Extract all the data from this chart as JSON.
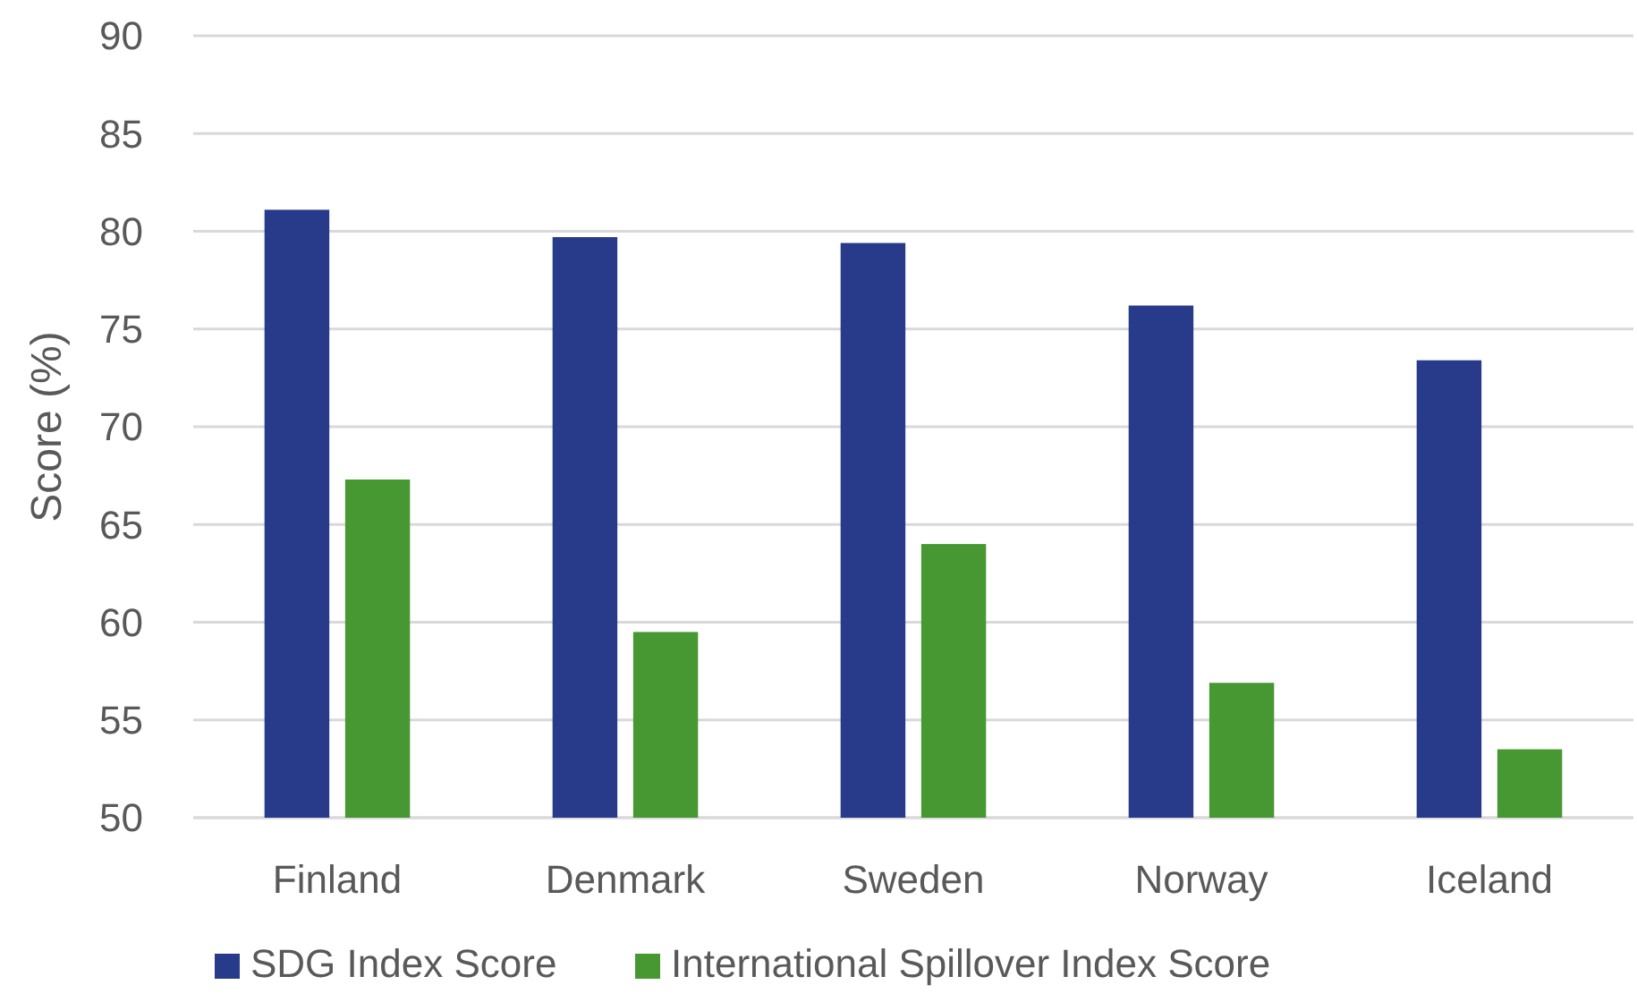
{
  "chart_data": {
    "type": "bar",
    "ylabel": "Score (%)",
    "categories": [
      "Finland",
      "Denmark",
      "Sweden",
      "Norway",
      "Iceland"
    ],
    "series": [
      {
        "name": "SDG Index Score",
        "color": "#283a8a",
        "values": [
          81.1,
          79.7,
          79.4,
          76.2,
          73.4
        ]
      },
      {
        "name": "International Spillover Index Score",
        "color": "#479833",
        "values": [
          67.3,
          59.5,
          64.0,
          56.9,
          53.5
        ]
      }
    ],
    "ylim": [
      50,
      90
    ],
    "yticks": [
      50,
      55,
      60,
      65,
      70,
      75,
      80,
      85,
      90
    ],
    "grid": "y",
    "legend": "bottom"
  }
}
